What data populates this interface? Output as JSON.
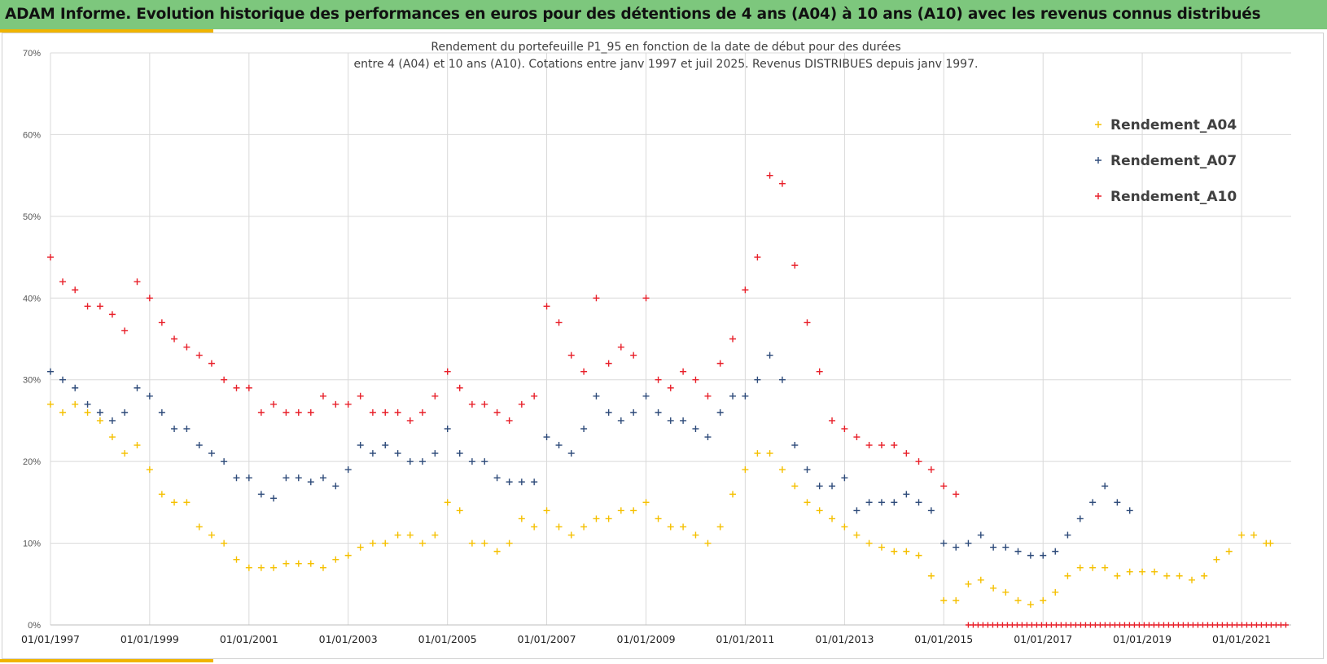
{
  "header": {
    "title": "ADAM Informe. Evolution historique des performances en euros pour des détentions de 4 ans (A04) à 10 ans (A10) avec les revenus connus distribués",
    "background": "#7dc77d",
    "accent": "#f0b400"
  },
  "chart_data": {
    "type": "scatter",
    "title_lines": [
      "Rendement du portefeuille P1_95 en fonction de la date de début pour des durées",
      "entre 4 (A04) et 10 ans (A10). Cotations  entre janv 1997 et juil 2025. Revenus DISTRIBUES depuis janv 1997."
    ],
    "marker": "+",
    "grid": true,
    "legend_position": "top-right",
    "x_axis": {
      "type": "date",
      "min": "1997-01-01",
      "max": "2022-01-01",
      "tick_labels": [
        "01/01/1997",
        "01/01/1999",
        "01/01/2001",
        "01/01/2003",
        "01/01/2005",
        "01/01/2007",
        "01/01/2009",
        "01/01/2011",
        "01/01/2013",
        "01/01/2015",
        "01/01/2017",
        "01/01/2019",
        "01/01/2021"
      ]
    },
    "y_axis": {
      "min": 0,
      "max": 70,
      "tick_labels": [
        "0%",
        "10%",
        "20%",
        "30%",
        "40%",
        "50%",
        "60%",
        "70%"
      ]
    },
    "series": [
      {
        "name": "Rendement_A04",
        "color": "#f5c000",
        "points": [
          [
            "1997-01",
            27
          ],
          [
            "1997-04",
            26
          ],
          [
            "1997-07",
            27
          ],
          [
            "1997-10",
            26
          ],
          [
            "1998-01",
            25
          ],
          [
            "1998-04",
            23
          ],
          [
            "1998-07",
            21
          ],
          [
            "1998-10",
            22
          ],
          [
            "1999-01",
            19
          ],
          [
            "1999-04",
            16
          ],
          [
            "1999-07",
            15
          ],
          [
            "1999-10",
            15
          ],
          [
            "2000-01",
            12
          ],
          [
            "2000-04",
            11
          ],
          [
            "2000-07",
            10
          ],
          [
            "2000-10",
            8
          ],
          [
            "2001-01",
            7
          ],
          [
            "2001-04",
            7
          ],
          [
            "2001-07",
            7
          ],
          [
            "2001-10",
            7.5
          ],
          [
            "2002-01",
            7.5
          ],
          [
            "2002-04",
            7.5
          ],
          [
            "2002-07",
            7
          ],
          [
            "2002-10",
            8
          ],
          [
            "2003-01",
            8.5
          ],
          [
            "2003-04",
            9.5
          ],
          [
            "2003-07",
            10
          ],
          [
            "2003-10",
            10
          ],
          [
            "2004-01",
            11
          ],
          [
            "2004-04",
            11
          ],
          [
            "2004-07",
            10
          ],
          [
            "2004-10",
            11
          ],
          [
            "2005-01",
            15
          ],
          [
            "2005-04",
            14
          ],
          [
            "2005-07",
            10
          ],
          [
            "2005-10",
            10
          ],
          [
            "2006-01",
            9
          ],
          [
            "2006-04",
            10
          ],
          [
            "2006-07",
            13
          ],
          [
            "2006-10",
            12
          ],
          [
            "2007-01",
            14
          ],
          [
            "2007-04",
            12
          ],
          [
            "2007-07",
            11
          ],
          [
            "2007-10",
            12
          ],
          [
            "2008-01",
            13
          ],
          [
            "2008-04",
            13
          ],
          [
            "2008-07",
            14
          ],
          [
            "2008-10",
            14
          ],
          [
            "2009-01",
            15
          ],
          [
            "2009-04",
            13
          ],
          [
            "2009-07",
            12
          ],
          [
            "2009-10",
            12
          ],
          [
            "2010-01",
            11
          ],
          [
            "2010-04",
            10
          ],
          [
            "2010-07",
            12
          ],
          [
            "2010-10",
            16
          ],
          [
            "2011-01",
            19
          ],
          [
            "2011-04",
            21
          ],
          [
            "2011-07",
            21
          ],
          [
            "2011-10",
            19
          ],
          [
            "2012-01",
            17
          ],
          [
            "2012-04",
            15
          ],
          [
            "2012-07",
            14
          ],
          [
            "2012-10",
            13
          ],
          [
            "2013-01",
            12
          ],
          [
            "2013-04",
            11
          ],
          [
            "2013-07",
            10
          ],
          [
            "2013-10",
            9.5
          ],
          [
            "2014-01",
            9
          ],
          [
            "2014-04",
            9
          ],
          [
            "2014-07",
            8.5
          ],
          [
            "2014-10",
            6
          ],
          [
            "2015-01",
            3
          ],
          [
            "2015-04",
            3
          ],
          [
            "2015-07",
            5
          ],
          [
            "2015-10",
            5.5
          ],
          [
            "2016-01",
            4.5
          ],
          [
            "2016-04",
            4
          ],
          [
            "2016-07",
            3
          ],
          [
            "2016-10",
            2.5
          ],
          [
            "2017-01",
            3
          ],
          [
            "2017-04",
            4
          ],
          [
            "2017-07",
            6
          ],
          [
            "2017-10",
            7
          ],
          [
            "2018-01",
            7
          ],
          [
            "2018-04",
            7
          ],
          [
            "2018-07",
            6
          ],
          [
            "2018-10",
            6.5
          ],
          [
            "2019-01",
            6.5
          ],
          [
            "2019-04",
            6.5
          ],
          [
            "2019-07",
            6
          ],
          [
            "2019-10",
            6
          ],
          [
            "2020-01",
            5.5
          ],
          [
            "2020-04",
            6
          ],
          [
            "2020-07",
            8
          ],
          [
            "2020-10",
            9
          ],
          [
            "2021-01",
            11
          ],
          [
            "2021-04",
            11
          ],
          [
            "2021-07",
            10
          ],
          [
            "2021-08",
            10
          ]
        ]
      },
      {
        "name": "Rendement_A07",
        "color": "#2e4b7a",
        "points": [
          [
            "1997-01",
            31
          ],
          [
            "1997-04",
            30
          ],
          [
            "1997-07",
            29
          ],
          [
            "1997-10",
            27
          ],
          [
            "1998-01",
            26
          ],
          [
            "1998-04",
            25
          ],
          [
            "1998-07",
            26
          ],
          [
            "1998-10",
            29
          ],
          [
            "1999-01",
            28
          ],
          [
            "1999-04",
            26
          ],
          [
            "1999-07",
            24
          ],
          [
            "1999-10",
            24
          ],
          [
            "2000-01",
            22
          ],
          [
            "2000-04",
            21
          ],
          [
            "2000-07",
            20
          ],
          [
            "2000-10",
            18
          ],
          [
            "2001-01",
            18
          ],
          [
            "2001-04",
            16
          ],
          [
            "2001-07",
            15.5
          ],
          [
            "2001-10",
            18
          ],
          [
            "2002-01",
            18
          ],
          [
            "2002-04",
            17.5
          ],
          [
            "2002-07",
            18
          ],
          [
            "2002-10",
            17
          ],
          [
            "2003-01",
            19
          ],
          [
            "2003-04",
            22
          ],
          [
            "2003-07",
            21
          ],
          [
            "2003-10",
            22
          ],
          [
            "2004-01",
            21
          ],
          [
            "2004-04",
            20
          ],
          [
            "2004-07",
            20
          ],
          [
            "2004-10",
            21
          ],
          [
            "2005-01",
            24
          ],
          [
            "2005-04",
            21
          ],
          [
            "2005-07",
            20
          ],
          [
            "2005-10",
            20
          ],
          [
            "2006-01",
            18
          ],
          [
            "2006-04",
            17.5
          ],
          [
            "2006-07",
            17.5
          ],
          [
            "2006-10",
            17.5
          ],
          [
            "2007-01",
            23
          ],
          [
            "2007-04",
            22
          ],
          [
            "2007-07",
            21
          ],
          [
            "2007-10",
            24
          ],
          [
            "2008-01",
            28
          ],
          [
            "2008-04",
            26
          ],
          [
            "2008-07",
            25
          ],
          [
            "2008-10",
            26
          ],
          [
            "2009-01",
            28
          ],
          [
            "2009-04",
            26
          ],
          [
            "2009-07",
            25
          ],
          [
            "2009-10",
            25
          ],
          [
            "2010-01",
            24
          ],
          [
            "2010-04",
            23
          ],
          [
            "2010-07",
            26
          ],
          [
            "2010-10",
            28
          ],
          [
            "2011-01",
            28
          ],
          [
            "2011-04",
            30
          ],
          [
            "2011-07",
            33
          ],
          [
            "2011-10",
            30
          ],
          [
            "2012-01",
            22
          ],
          [
            "2012-04",
            19
          ],
          [
            "2012-07",
            17
          ],
          [
            "2012-10",
            17
          ],
          [
            "2013-01",
            18
          ],
          [
            "2013-04",
            14
          ],
          [
            "2013-07",
            15
          ],
          [
            "2013-10",
            15
          ],
          [
            "2014-01",
            15
          ],
          [
            "2014-04",
            16
          ],
          [
            "2014-07",
            15
          ],
          [
            "2014-10",
            14
          ],
          [
            "2015-01",
            10
          ],
          [
            "2015-04",
            9.5
          ],
          [
            "2015-07",
            10
          ],
          [
            "2015-10",
            11
          ],
          [
            "2016-01",
            9.5
          ],
          [
            "2016-04",
            9.5
          ],
          [
            "2016-07",
            9
          ],
          [
            "2016-10",
            8.5
          ],
          [
            "2017-01",
            8.5
          ],
          [
            "2017-04",
            9
          ],
          [
            "2017-07",
            11
          ],
          [
            "2017-10",
            13
          ],
          [
            "2018-01",
            15
          ],
          [
            "2018-04",
            17
          ],
          [
            "2018-07",
            15
          ],
          [
            "2018-10",
            14
          ]
        ]
      },
      {
        "name": "Rendement_A10",
        "color": "#e8202a",
        "points": [
          [
            "1997-01",
            45
          ],
          [
            "1997-04",
            42
          ],
          [
            "1997-07",
            41
          ],
          [
            "1997-10",
            39
          ],
          [
            "1998-01",
            39
          ],
          [
            "1998-04",
            38
          ],
          [
            "1998-07",
            36
          ],
          [
            "1998-10",
            42
          ],
          [
            "1999-01",
            40
          ],
          [
            "1999-04",
            37
          ],
          [
            "1999-07",
            35
          ],
          [
            "1999-10",
            34
          ],
          [
            "2000-01",
            33
          ],
          [
            "2000-04",
            32
          ],
          [
            "2000-07",
            30
          ],
          [
            "2000-10",
            29
          ],
          [
            "2001-01",
            29
          ],
          [
            "2001-04",
            26
          ],
          [
            "2001-07",
            27
          ],
          [
            "2001-10",
            26
          ],
          [
            "2002-01",
            26
          ],
          [
            "2002-04",
            26
          ],
          [
            "2002-07",
            28
          ],
          [
            "2002-10",
            27
          ],
          [
            "2003-01",
            27
          ],
          [
            "2003-04",
            28
          ],
          [
            "2003-07",
            26
          ],
          [
            "2003-10",
            26
          ],
          [
            "2004-01",
            26
          ],
          [
            "2004-04",
            25
          ],
          [
            "2004-07",
            26
          ],
          [
            "2004-10",
            28
          ],
          [
            "2005-01",
            31
          ],
          [
            "2005-04",
            29
          ],
          [
            "2005-07",
            27
          ],
          [
            "2005-10",
            27
          ],
          [
            "2006-01",
            26
          ],
          [
            "2006-04",
            25
          ],
          [
            "2006-07",
            27
          ],
          [
            "2006-10",
            28
          ],
          [
            "2007-01",
            39
          ],
          [
            "2007-04",
            37
          ],
          [
            "2007-07",
            33
          ],
          [
            "2007-10",
            31
          ],
          [
            "2008-01",
            40
          ],
          [
            "2008-04",
            32
          ],
          [
            "2008-07",
            34
          ],
          [
            "2008-10",
            33
          ],
          [
            "2009-01",
            40
          ],
          [
            "2009-04",
            30
          ],
          [
            "2009-07",
            29
          ],
          [
            "2009-10",
            31
          ],
          [
            "2010-01",
            30
          ],
          [
            "2010-04",
            28
          ],
          [
            "2010-07",
            32
          ],
          [
            "2010-10",
            35
          ],
          [
            "2011-01",
            41
          ],
          [
            "2011-04",
            45
          ],
          [
            "2011-07",
            55
          ],
          [
            "2011-10",
            54
          ],
          [
            "2012-01",
            44
          ],
          [
            "2012-04",
            37
          ],
          [
            "2012-07",
            31
          ],
          [
            "2012-10",
            25
          ],
          [
            "2013-01",
            24
          ],
          [
            "2013-04",
            23
          ],
          [
            "2013-07",
            22
          ],
          [
            "2013-10",
            22
          ],
          [
            "2014-01",
            22
          ],
          [
            "2014-04",
            21
          ],
          [
            "2014-07",
            20
          ],
          [
            "2014-10",
            19
          ],
          [
            "2015-01",
            17
          ],
          [
            "2015-04",
            16
          ]
        ]
      }
    ],
    "zero_series": {
      "name": "Rendement_A10",
      "color": "#e8202a",
      "from": "2015-07",
      "to": "2021-12",
      "value": 0
    }
  }
}
